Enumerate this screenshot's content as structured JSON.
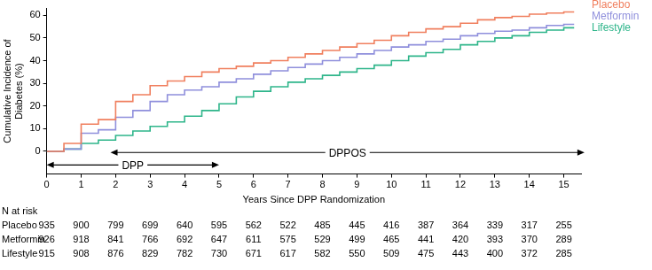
{
  "chart_data": {
    "type": "line",
    "line_style": "step",
    "x_label": "Years Since DPP Randomization",
    "y_label": [
      "Cumulative Incidence of",
      "Diabetes (%)"
    ],
    "x": [
      0,
      0.5,
      1,
      1.5,
      2,
      2.5,
      3,
      3.5,
      4,
      4.5,
      5,
      5.5,
      6,
      6.5,
      7,
      7.5,
      8,
      8.5,
      9,
      9.5,
      10,
      10.5,
      11,
      11.5,
      12,
      12.5,
      13,
      13.5,
      14,
      14.5,
      15,
      15.3
    ],
    "xlim": [
      0,
      15.5
    ],
    "xticks": [
      0,
      1,
      2,
      3,
      4,
      5,
      6,
      7,
      8,
      9,
      10,
      11,
      12,
      13,
      14,
      15
    ],
    "ylim": [
      -10,
      63
    ],
    "yticks": [
      0,
      10,
      20,
      30,
      40,
      50,
      60
    ],
    "grid": false,
    "series": [
      {
        "name": "Placebo",
        "color": "#f07f5e",
        "values": [
          0,
          3.5,
          12,
          14,
          22,
          25,
          29,
          31,
          33,
          35,
          36.5,
          37.5,
          39,
          40,
          41.5,
          43,
          44.5,
          46,
          47.5,
          49,
          51,
          52.5,
          54,
          55,
          56.5,
          58,
          59,
          59.5,
          60.5,
          61,
          61.5,
          61.5
        ]
      },
      {
        "name": "Metformin",
        "color": "#8f8fdc",
        "values": [
          0,
          1,
          8,
          9.5,
          15,
          18,
          22,
          25,
          27,
          28.5,
          30.5,
          32,
          34,
          35.5,
          37,
          38.5,
          40,
          41.5,
          43,
          44.5,
          46,
          47,
          48.5,
          49.5,
          51,
          52,
          53,
          53.5,
          54.5,
          55.5,
          56,
          56
        ]
      },
      {
        "name": "Lifestyle",
        "color": "#2eb58a",
        "values": [
          0,
          1,
          3.5,
          5,
          7,
          9,
          11,
          13,
          15.5,
          18,
          21,
          24,
          26.5,
          28.5,
          30.5,
          32,
          33.5,
          35,
          36.5,
          38,
          40,
          42,
          43.5,
          45,
          47,
          48.5,
          50,
          51,
          52.5,
          53.5,
          54.5,
          54.5
        ]
      }
    ],
    "annotations": [
      {
        "text": "DPP",
        "x": [
          0,
          5
        ],
        "y": -6
      },
      {
        "text": "DPPOS",
        "x": [
          1.85,
          15.6
        ],
        "y": -0.5
      }
    ],
    "risk_table": {
      "title": "N at risk",
      "rows": [
        {
          "name": "Placebo",
          "values": [
            935,
            900,
            799,
            699,
            640,
            595,
            562,
            522,
            485,
            445,
            416,
            387,
            364,
            339,
            317,
            255
          ]
        },
        {
          "name": "Metformin",
          "values": [
            926,
            918,
            841,
            766,
            692,
            647,
            611,
            575,
            529,
            499,
            465,
            441,
            420,
            393,
            370,
            289
          ]
        },
        {
          "name": "Lifestyle",
          "values": [
            915,
            908,
            876,
            829,
            782,
            730,
            671,
            617,
            582,
            550,
            509,
            475,
            443,
            400,
            372,
            285
          ]
        }
      ]
    }
  }
}
